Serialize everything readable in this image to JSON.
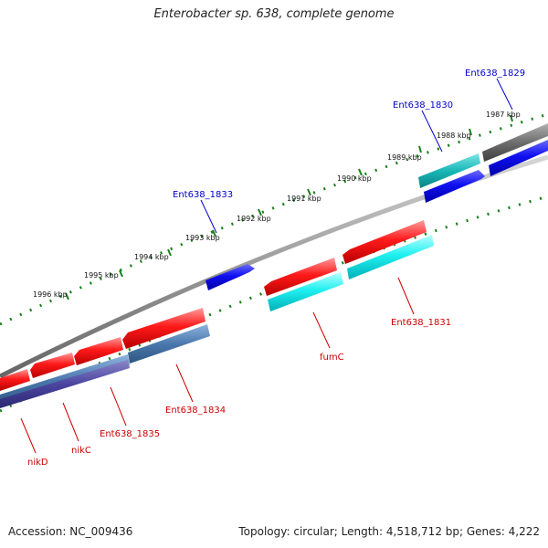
{
  "title": "Enterobacter sp. 638, complete genome",
  "footer": {
    "accession": "Accession: NC_009436",
    "topology": "Topology: circular; Length: 4,518,712 bp; Genes: 4,222"
  },
  "colors": {
    "forward_label": "#0000cc",
    "reverse_label": "#cc0000",
    "tick": "#1a7f1a",
    "backbone": "#8a8a8a"
  },
  "ticks": [
    "1987 kbp",
    "1988 kbp",
    "1989 kbp",
    "1990 kbp",
    "1991 kbp",
    "1992 kbp",
    "1993 kbp",
    "1994 kbp",
    "1995 kbp",
    "1996 kbp"
  ],
  "gene_labels": {
    "ent638_1829": "Ent638_1829",
    "ent638_1830": "Ent638_1830",
    "ent638_1833": "Ent638_1833",
    "ent638_1831": "Ent638_1831",
    "fumc": "fumC",
    "ent638_1834": "Ent638_1834",
    "ent638_1835": "Ent638_1835",
    "nikc": "nikC",
    "nikd": "nikD"
  }
}
